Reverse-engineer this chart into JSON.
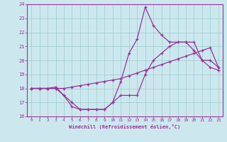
{
  "xlabel": "Windchill (Refroidissement éolien,°C)",
  "background_color": "#cce8ee",
  "grid_color": "#99cccc",
  "line_color": "#993399",
  "xlim": [
    -0.5,
    23.5
  ],
  "ylim": [
    16,
    24
  ],
  "xticks": [
    0,
    1,
    2,
    3,
    4,
    5,
    6,
    7,
    8,
    9,
    10,
    11,
    12,
    13,
    14,
    15,
    16,
    17,
    18,
    19,
    20,
    21,
    22,
    23
  ],
  "yticks": [
    16,
    17,
    18,
    19,
    20,
    21,
    22,
    23,
    24
  ],
  "series1_x": [
    0,
    1,
    2,
    3,
    4,
    5,
    6,
    7,
    8,
    9,
    10,
    11,
    12,
    13,
    14,
    15,
    16,
    17,
    18,
    19,
    20,
    21,
    22,
    23
  ],
  "series1_y": [
    18.0,
    18.0,
    18.0,
    18.0,
    18.0,
    18.1,
    18.2,
    18.3,
    18.4,
    18.5,
    18.6,
    18.7,
    18.9,
    19.1,
    19.3,
    19.5,
    19.7,
    19.9,
    20.1,
    20.3,
    20.5,
    20.7,
    20.9,
    19.5
  ],
  "series2_x": [
    0,
    1,
    2,
    3,
    4,
    5,
    6,
    7,
    8,
    9,
    10,
    11,
    12,
    13,
    14,
    15,
    16,
    17,
    18,
    19,
    20,
    21,
    22,
    23
  ],
  "series2_y": [
    18.0,
    18.0,
    18.0,
    18.0,
    17.5,
    16.7,
    16.5,
    16.5,
    16.5,
    16.5,
    17.0,
    17.5,
    17.5,
    17.5,
    19.0,
    20.0,
    20.5,
    21.0,
    21.3,
    21.3,
    21.3,
    20.0,
    20.0,
    19.5
  ],
  "series3_x": [
    0,
    1,
    2,
    3,
    4,
    5,
    6,
    7,
    8,
    9,
    10,
    11,
    12,
    13,
    14,
    15,
    16,
    17,
    18,
    19,
    20,
    21,
    22,
    23
  ],
  "series3_y": [
    18.0,
    18.0,
    18.0,
    18.1,
    17.5,
    17.0,
    16.5,
    16.5,
    16.5,
    16.5,
    17.0,
    18.5,
    20.5,
    21.5,
    23.8,
    22.5,
    21.8,
    21.3,
    21.3,
    21.3,
    20.7,
    20.0,
    19.5,
    19.3
  ]
}
